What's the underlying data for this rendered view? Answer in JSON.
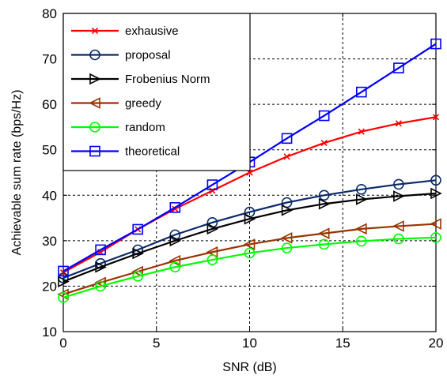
{
  "chart_data": {
    "type": "line",
    "xlabel": "SNR (dB)",
    "ylabel": "Achievable sum rate (bps/Hz)",
    "xlim": [
      0,
      20
    ],
    "ylim": [
      10,
      80
    ],
    "xticks": [
      0,
      5,
      10,
      15,
      20
    ],
    "yticks": [
      10,
      20,
      30,
      40,
      50,
      60,
      70,
      80
    ],
    "grid": true,
    "legend_position": "top-left",
    "x": [
      0,
      2,
      4,
      6,
      8,
      10,
      12,
      14,
      16,
      18,
      20
    ],
    "series": [
      {
        "name": "exhausive",
        "color": "#ff0000",
        "marker": "x",
        "values": [
          23.0,
          27.5,
          32.5,
          37.0,
          41.0,
          45.0,
          48.5,
          51.5,
          54.0,
          55.8,
          57.2
        ]
      },
      {
        "name": "proposal",
        "color": "#0a2a6b",
        "marker": "circle",
        "values": [
          21.8,
          25.0,
          28.0,
          31.3,
          34.0,
          36.3,
          38.4,
          40.0,
          41.3,
          42.4,
          43.3
        ]
      },
      {
        "name": "Frobenius Norm",
        "color": "#000000",
        "marker": "triangle-right",
        "values": [
          21.0,
          24.2,
          27.2,
          30.0,
          32.6,
          34.8,
          36.7,
          38.1,
          39.1,
          39.8,
          40.4
        ]
      },
      {
        "name": "greedy",
        "color": "#993300",
        "marker": "triangle-left",
        "values": [
          18.2,
          20.8,
          23.2,
          25.6,
          27.5,
          29.2,
          30.6,
          31.6,
          32.6,
          33.2,
          33.7
        ]
      },
      {
        "name": "random",
        "color": "#00ff00",
        "marker": "circle",
        "values": [
          17.5,
          20.0,
          22.2,
          24.2,
          25.8,
          27.3,
          28.4,
          29.2,
          29.9,
          30.4,
          30.7
        ]
      },
      {
        "name": "theoretical",
        "color": "#0000ff",
        "marker": "square",
        "values": [
          23.3,
          28.0,
          32.5,
          37.3,
          42.3,
          47.3,
          52.5,
          57.5,
          62.7,
          68.0,
          73.3
        ]
      }
    ]
  }
}
